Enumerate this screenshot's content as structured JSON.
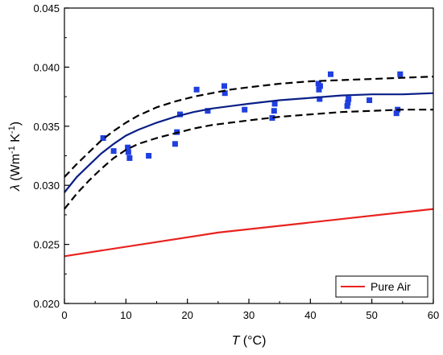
{
  "chart_data": {
    "type": "scatter",
    "xlabel": {
      "symbol": "T",
      "unit": " (°C)"
    },
    "ylabel": {
      "symbol": "λ",
      "unit_pre": " (Wm",
      "exp1": "-1",
      "unit_mid": " K",
      "exp2": "-1",
      "unit_post": ")"
    },
    "xlim": [
      0,
      60
    ],
    "ylim": [
      0.02,
      0.045
    ],
    "xticks": [
      0,
      10,
      20,
      30,
      40,
      50,
      60
    ],
    "yticks": [
      0.02,
      0.025,
      0.03,
      0.035,
      0.04,
      0.045
    ],
    "xtick_labels": [
      "0",
      "10",
      "20",
      "30",
      "40",
      "50",
      "60"
    ],
    "ytick_labels": [
      "0.020",
      "0.025",
      "0.030",
      "0.035",
      "0.040",
      "0.045"
    ],
    "grid": false,
    "legend_position": "bottom-right",
    "series": [
      {
        "kind": "points",
        "color": "#1f3fe0",
        "marker": "square",
        "x": [
          6.3,
          8.0,
          10.3,
          10.4,
          10.6,
          13.7,
          18.0,
          18.3,
          18.8,
          21.5,
          23.3,
          26.0,
          26.1,
          29.3,
          33.8,
          34.1,
          34.2,
          41.3,
          41.4,
          41.5,
          41.6,
          43.3,
          46.0,
          46.1,
          46.2,
          49.6,
          54.0,
          54.2,
          54.6
        ],
        "y": [
          0.034,
          0.0329,
          0.0332,
          0.0328,
          0.0323,
          0.0325,
          0.0335,
          0.0345,
          0.036,
          0.0381,
          0.0363,
          0.0384,
          0.0378,
          0.0364,
          0.0357,
          0.0363,
          0.0369,
          0.0386,
          0.0381,
          0.0373,
          0.0384,
          0.0394,
          0.0367,
          0.037,
          0.0373,
          0.0372,
          0.0361,
          0.0364,
          0.0394
        ]
      },
      {
        "kind": "line",
        "color": "#0a1f86",
        "dash": "solid",
        "x": [
          0,
          2,
          4,
          6,
          8,
          10,
          12,
          15,
          18,
          21,
          24,
          27,
          30,
          35,
          40,
          45,
          50,
          55,
          60
        ],
        "y": [
          0.0294,
          0.0307,
          0.0317,
          0.0327,
          0.0335,
          0.0342,
          0.0347,
          0.0353,
          0.0358,
          0.0362,
          0.0365,
          0.0367,
          0.0369,
          0.0372,
          0.0374,
          0.0376,
          0.0377,
          0.0377,
          0.0378
        ]
      },
      {
        "kind": "line",
        "color": "#000000",
        "dash": "dashed",
        "x": [
          0,
          2,
          4,
          6,
          8,
          10,
          12,
          15,
          18,
          21,
          24,
          27,
          30,
          35,
          40,
          45,
          50,
          55,
          60
        ],
        "y": [
          0.0307,
          0.0318,
          0.0328,
          0.0338,
          0.0346,
          0.0353,
          0.0359,
          0.0366,
          0.0371,
          0.0375,
          0.0378,
          0.0381,
          0.0383,
          0.0386,
          0.0388,
          0.0389,
          0.039,
          0.0391,
          0.0392
        ]
      },
      {
        "kind": "line",
        "color": "#000000",
        "dash": "dashed",
        "x": [
          0,
          2,
          4,
          6,
          8,
          10,
          12,
          15,
          18,
          21,
          24,
          27,
          30,
          35,
          40,
          45,
          50,
          55,
          60
        ],
        "y": [
          0.028,
          0.0293,
          0.0304,
          0.0314,
          0.0323,
          0.033,
          0.0335,
          0.034,
          0.0344,
          0.0348,
          0.0351,
          0.0353,
          0.0355,
          0.0358,
          0.036,
          0.0362,
          0.0363,
          0.0364,
          0.0364
        ]
      },
      {
        "kind": "line",
        "name": "Pure Air",
        "color": "#e8231f",
        "dash": "solid",
        "x": [
          0,
          25,
          60
        ],
        "y": [
          0.024,
          0.026,
          0.028
        ]
      }
    ]
  }
}
